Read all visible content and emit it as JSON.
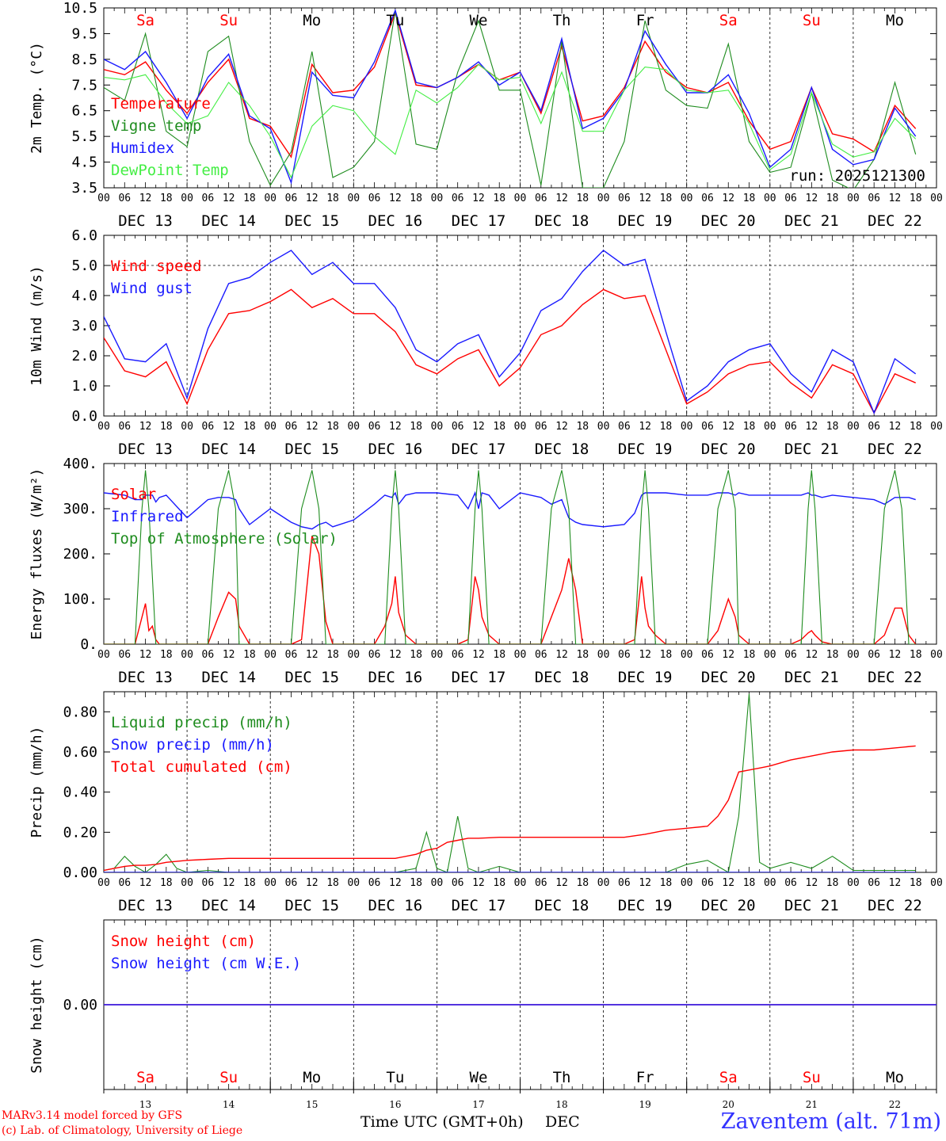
{
  "run_label": "run: 2025121300",
  "credits": {
    "line1": "MARv3.14 model forced by GFS",
    "line2": "(c) Lab. of Climatology, University of Liege"
  },
  "station": "Zaventem (alt. 71m)",
  "time_axis_label": "Time UTC (GMT+0h)",
  "month_label": "DEC",
  "day_names": [
    "Sa",
    "Su",
    "Mo",
    "Tu",
    "We",
    "Th",
    "Fr",
    "Sa",
    "Su",
    "Mo"
  ],
  "day_numbers": [
    "13",
    "14",
    "15",
    "16",
    "17",
    "18",
    "19",
    "20",
    "21",
    "22"
  ],
  "date_labels": [
    "DEC 13",
    "DEC 14",
    "DEC 15",
    "DEC 16",
    "DEC 17",
    "DEC 18",
    "DEC 19",
    "DEC 20",
    "DEC 21",
    "DEC 22"
  ],
  "hour_labels": [
    "00",
    "06",
    "12",
    "18"
  ],
  "colors": {
    "red": "#ff0000",
    "green": "#1e8c1e",
    "blue": "#1a1aff",
    "lightgreen": "#44ee44",
    "weekend": "#ff0000",
    "weekday": "#000000"
  },
  "chart_data": [
    {
      "type": "line",
      "ylabel": "2m Temp. (°C)",
      "ylim": [
        3.5,
        10.5
      ],
      "yticks": [
        "3.5",
        "4.5",
        "5.5",
        "6.5",
        "7.5",
        "8.5",
        "9.5",
        "10.5"
      ],
      "x_hours": [
        0,
        6,
        12,
        18,
        24,
        30,
        36,
        42,
        48,
        54,
        60,
        66,
        72,
        78,
        84,
        90,
        96,
        102,
        108,
        114,
        120,
        126,
        132,
        138,
        144,
        150,
        156,
        162,
        168,
        174,
        180,
        186,
        192,
        198,
        204,
        210,
        216,
        222,
        228,
        234
      ],
      "series": [
        {
          "name": "Temperature",
          "color": "#ff0000",
          "values": [
            8.1,
            7.9,
            8.4,
            7.3,
            6.4,
            7.6,
            8.5,
            6.2,
            5.9,
            4.7,
            8.3,
            7.2,
            7.3,
            8.2,
            10.3,
            7.5,
            7.4,
            7.8,
            8.3,
            7.7,
            8.0,
            6.4,
            9.0,
            6.1,
            6.3,
            7.4,
            9.2,
            8.0,
            7.4,
            7.2,
            7.6,
            6.1,
            5.0,
            5.3,
            7.4,
            5.6,
            5.4,
            4.9,
            6.7,
            5.8
          ]
        },
        {
          "name": "Vigne temp",
          "color": "#1e8c1e",
          "values": [
            7.4,
            6.9,
            9.5,
            5.7,
            5.1,
            8.8,
            9.4,
            5.3,
            3.6,
            4.9,
            8.8,
            3.9,
            4.3,
            5.3,
            10.4,
            5.2,
            5.0,
            8.0,
            10.0,
            7.3,
            7.3,
            3.6,
            9.2,
            3.5,
            3.5,
            5.3,
            10.0,
            7.3,
            6.7,
            6.6,
            9.1,
            5.3,
            4.1,
            4.3,
            7.2,
            3.8,
            3.4,
            4.6,
            7.6,
            4.8
          ]
        },
        {
          "name": "Humidex",
          "color": "#1a1aff",
          "values": [
            8.5,
            8.1,
            8.8,
            7.6,
            6.2,
            7.8,
            8.7,
            6.3,
            5.8,
            3.7,
            8.0,
            7.1,
            7.0,
            8.4,
            10.4,
            7.6,
            7.4,
            7.8,
            8.4,
            7.5,
            8.0,
            6.5,
            9.3,
            5.8,
            6.2,
            7.3,
            9.6,
            8.3,
            7.2,
            7.2,
            7.9,
            6.4,
            4.3,
            5.0,
            7.4,
            5.0,
            4.4,
            4.6,
            6.6,
            5.5
          ]
        },
        {
          "name": "DewPoint Temp",
          "color": "#44ee44",
          "values": [
            7.8,
            7.7,
            7.9,
            6.8,
            6.0,
            6.3,
            7.6,
            6.7,
            5.5,
            3.9,
            5.9,
            6.7,
            6.5,
            5.5,
            4.8,
            7.3,
            6.8,
            7.4,
            8.3,
            7.7,
            7.8,
            6.0,
            8.0,
            5.7,
            5.7,
            7.3,
            8.2,
            8.1,
            7.3,
            7.2,
            7.3,
            6.0,
            4.2,
            4.8,
            7.2,
            5.2,
            4.7,
            4.9,
            6.2,
            5.4
          ]
        }
      ]
    },
    {
      "type": "line",
      "ylabel": "10m Wind (m/s)",
      "ylim": [
        0,
        6
      ],
      "yticks": [
        "0.0",
        "1.0",
        "2.0",
        "3.0",
        "4.0",
        "5.0",
        "6.0"
      ],
      "x_hours": [
        0,
        6,
        12,
        18,
        24,
        30,
        36,
        42,
        48,
        54,
        60,
        66,
        72,
        78,
        84,
        90,
        96,
        102,
        108,
        114,
        120,
        126,
        132,
        138,
        144,
        150,
        156,
        162,
        168,
        174,
        180,
        186,
        192,
        198,
        204,
        210,
        216,
        222,
        228,
        234
      ],
      "series": [
        {
          "name": "Wind speed",
          "color": "#ff0000",
          "values": [
            2.6,
            1.5,
            1.3,
            1.8,
            0.4,
            2.2,
            3.4,
            3.5,
            3.8,
            4.2,
            3.6,
            3.9,
            3.4,
            3.4,
            2.8,
            1.7,
            1.4,
            1.9,
            2.2,
            1.0,
            1.6,
            2.7,
            3.0,
            3.7,
            4.2,
            3.9,
            4.0,
            2.2,
            0.4,
            0.8,
            1.4,
            1.7,
            1.8,
            1.1,
            0.6,
            1.7,
            1.4,
            0.1,
            1.4,
            1.1
          ]
        },
        {
          "name": "Wind gust",
          "color": "#1a1aff",
          "values": [
            3.3,
            1.9,
            1.8,
            2.4,
            0.6,
            2.9,
            4.4,
            4.6,
            5.1,
            5.5,
            4.7,
            5.1,
            4.4,
            4.4,
            3.6,
            2.2,
            1.8,
            2.4,
            2.7,
            1.3,
            2.1,
            3.5,
            3.9,
            4.8,
            5.5,
            5.0,
            5.2,
            2.8,
            0.5,
            1.0,
            1.8,
            2.2,
            2.4,
            1.4,
            0.8,
            2.2,
            1.8,
            0.1,
            1.9,
            1.4
          ]
        }
      ]
    },
    {
      "type": "line",
      "ylabel": "Energy fluxes (W/m²)",
      "ylim": [
        0,
        400
      ],
      "yticks": [
        "0.",
        "100.",
        "200.",
        "300.",
        "400."
      ],
      "x_hours": [
        0,
        6,
        9,
        11,
        12,
        13,
        14,
        15,
        16,
        18,
        24,
        30,
        33,
        36,
        38,
        39,
        42,
        48,
        54,
        57,
        60,
        62,
        64,
        66,
        72,
        78,
        81,
        83,
        84,
        85,
        87,
        90,
        96,
        102,
        105,
        107,
        108,
        109,
        111,
        114,
        120,
        126,
        129,
        132,
        134,
        136,
        138,
        144,
        150,
        153,
        155,
        156,
        157,
        159,
        162,
        168,
        174,
        177,
        180,
        182,
        183,
        186,
        192,
        198,
        201,
        203,
        204,
        205,
        207,
        210,
        216,
        222,
        225,
        228,
        230,
        232,
        234
      ],
      "series": [
        {
          "name": "Solar",
          "color": "#ff0000",
          "values": [
            0,
            0,
            0,
            60,
            90,
            30,
            40,
            10,
            0,
            0,
            0,
            0,
            60,
            115,
            100,
            40,
            0,
            0,
            0,
            10,
            240,
            200,
            50,
            0,
            0,
            0,
            40,
            90,
            150,
            70,
            20,
            0,
            0,
            0,
            10,
            150,
            120,
            60,
            20,
            0,
            0,
            0,
            60,
            120,
            190,
            120,
            0,
            0,
            0,
            10,
            150,
            80,
            40,
            20,
            0,
            0,
            0,
            30,
            100,
            60,
            20,
            0,
            0,
            0,
            10,
            25,
            30,
            20,
            5,
            0,
            0,
            0,
            20,
            80,
            80,
            20,
            0
          ]
        },
        {
          "name": "Infrared",
          "color": "#1a1aff",
          "values": [
            335,
            330,
            320,
            320,
            330,
            330,
            330,
            315,
            325,
            330,
            280,
            320,
            325,
            325,
            320,
            300,
            265,
            300,
            270,
            260,
            255,
            265,
            270,
            260,
            275,
            310,
            330,
            325,
            335,
            310,
            330,
            335,
            335,
            330,
            300,
            335,
            300,
            335,
            330,
            300,
            335,
            325,
            310,
            320,
            280,
            270,
            265,
            260,
            265,
            290,
            330,
            335,
            335,
            335,
            335,
            330,
            330,
            335,
            335,
            330,
            335,
            330,
            330,
            330,
            330,
            335,
            330,
            330,
            325,
            330,
            325,
            320,
            310,
            325,
            325,
            325,
            320
          ]
        },
        {
          "name": "Top of Atmosphere (Solar)",
          "color": "#1e8c1e",
          "values": [
            0,
            0,
            0,
            300,
            385,
            300,
            150,
            0,
            0,
            0,
            0,
            0,
            300,
            385,
            300,
            0,
            0,
            0,
            0,
            300,
            385,
            300,
            0,
            0,
            0,
            0,
            0,
            300,
            385,
            300,
            0,
            0,
            0,
            0,
            0,
            300,
            385,
            300,
            0,
            0,
            0,
            0,
            300,
            385,
            300,
            0,
            0,
            0,
            0,
            0,
            300,
            385,
            300,
            0,
            0,
            0,
            0,
            300,
            385,
            300,
            0,
            0,
            0,
            0,
            0,
            300,
            385,
            300,
            0,
            0,
            0,
            0,
            300,
            385,
            300,
            0,
            0
          ]
        }
      ]
    },
    {
      "type": "line",
      "ylabel": "Precip (mm/h)",
      "ylim": [
        0,
        0.9
      ],
      "yticks": [
        "0.00",
        "0.20",
        "0.40",
        "0.60",
        "0.80"
      ],
      "x_hours": [
        0,
        3,
        6,
        9,
        12,
        15,
        18,
        21,
        24,
        30,
        36,
        42,
        48,
        54,
        60,
        66,
        72,
        78,
        84,
        90,
        93,
        96,
        99,
        102,
        105,
        108,
        114,
        120,
        126,
        132,
        138,
        144,
        150,
        156,
        162,
        168,
        174,
        177,
        180,
        183,
        186,
        189,
        192,
        198,
        204,
        210,
        216,
        222,
        228,
        234
      ],
      "series": [
        {
          "name": "Liquid precip (mm/h)",
          "color": "#1e8c1e",
          "values": [
            0.01,
            0.02,
            0.08,
            0.03,
            0.0,
            0.04,
            0.09,
            0.02,
            0.0,
            0.01,
            0.0,
            0.0,
            0.0,
            0.0,
            0.0,
            0.0,
            0.0,
            0.0,
            0.0,
            0.02,
            0.2,
            0.02,
            0.0,
            0.28,
            0.02,
            0.0,
            0.03,
            0.0,
            0.0,
            0.0,
            0.0,
            0.0,
            0.0,
            0.0,
            0.0,
            0.04,
            0.06,
            0.03,
            0.0,
            0.28,
            0.89,
            0.05,
            0.02,
            0.05,
            0.02,
            0.08,
            0.01,
            0.01,
            0.01,
            0.01
          ]
        },
        {
          "name": "Snow precip (mm/h)",
          "color": "#1a1aff",
          "values": [
            0,
            0,
            0,
            0,
            0,
            0,
            0,
            0,
            0,
            0,
            0,
            0,
            0,
            0,
            0,
            0,
            0,
            0,
            0,
            0,
            0,
            0,
            0,
            0,
            0,
            0,
            0,
            0,
            0,
            0,
            0,
            0,
            0,
            0,
            0,
            0,
            0,
            0,
            0,
            0,
            0,
            0,
            0,
            0,
            0,
            0,
            0,
            0,
            0,
            0
          ]
        },
        {
          "name": "Total cumulated (cm)",
          "color": "#ff0000",
          "values": [
            0.01,
            0.02,
            0.03,
            0.035,
            0.035,
            0.04,
            0.05,
            0.055,
            0.06,
            0.065,
            0.07,
            0.07,
            0.07,
            0.07,
            0.07,
            0.07,
            0.07,
            0.07,
            0.07,
            0.09,
            0.11,
            0.12,
            0.15,
            0.16,
            0.17,
            0.17,
            0.175,
            0.175,
            0.175,
            0.175,
            0.175,
            0.175,
            0.175,
            0.19,
            0.21,
            0.22,
            0.23,
            0.28,
            0.36,
            0.5,
            0.51,
            0.52,
            0.53,
            0.56,
            0.58,
            0.6,
            0.61,
            0.61,
            0.62,
            0.63
          ]
        }
      ]
    },
    {
      "type": "line",
      "ylabel": "Snow height (cm)",
      "ylim": [
        -1,
        1
      ],
      "yticks": [
        "0.00"
      ],
      "x_hours": [
        0,
        240
      ],
      "series": [
        {
          "name": "Snow height (cm)",
          "color": "#ff0000",
          "values": [
            0,
            0
          ]
        },
        {
          "name": "Snow height (cm W.E.)",
          "color": "#1a1aff",
          "values": [
            0,
            0
          ]
        }
      ]
    }
  ]
}
